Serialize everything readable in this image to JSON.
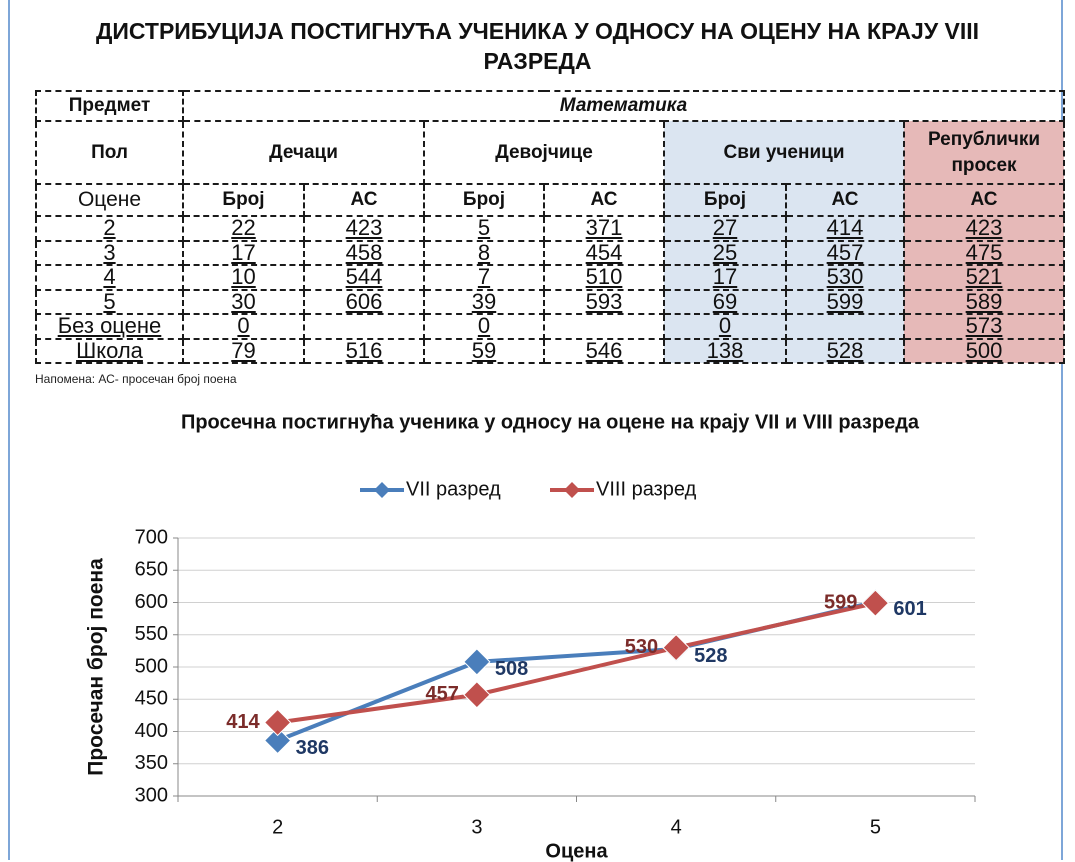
{
  "title": "ДИСТРИБУЦИЈА ПОСТИГНУЋА УЧЕНИКА У ОДНОСУ НА ОЦЕНУ НА КРАЈУ VIII РАЗРЕДА",
  "table": {
    "subject_label": "Предмет",
    "subject": "Математика",
    "gender_label": "Пол",
    "groups": [
      "Дечаци",
      "Девојчице",
      "Сви ученици",
      "Републички просек"
    ],
    "subheaders": [
      "Оцене",
      "Број",
      "АС",
      "Број",
      "АС",
      "Број",
      "АС",
      "АС"
    ],
    "rows": [
      [
        "2",
        22,
        423,
        5,
        371,
        27,
        414,
        423
      ],
      [
        "3",
        17,
        458,
        8,
        454,
        25,
        457,
        475
      ],
      [
        "4",
        10,
        544,
        7,
        510,
        17,
        530,
        521
      ],
      [
        "5",
        30,
        606,
        39,
        593,
        69,
        599,
        589
      ],
      [
        "Без оцене",
        0,
        null,
        0,
        null,
        0,
        null,
        573
      ],
      [
        "Школа",
        79,
        516,
        59,
        546,
        138,
        528,
        500
      ]
    ]
  },
  "note": "Напомена: АС- просечан број поена",
  "chart_data": {
    "type": "line",
    "title": "Просечна постигнућа ученика у односу на оцене на крају VII и VIII разреда",
    "categories": [
      "2",
      "3",
      "4",
      "5"
    ],
    "series": [
      {
        "name": "VII разред",
        "color": "#4a7ebb",
        "label_color": "#1f3864",
        "values": [
          386,
          508,
          528,
          601
        ]
      },
      {
        "name": "VIII разред",
        "color": "#c0504d",
        "label_color": "#7b2c2a",
        "values": [
          414,
          457,
          530,
          599
        ]
      }
    ],
    "ylim": [
      300,
      700
    ],
    "yticks": [
      300,
      350,
      400,
      450,
      500,
      550,
      600,
      650,
      700
    ],
    "y_label": "Просечан број поена",
    "x_label": "Оцена",
    "grid": true,
    "legend": "top"
  }
}
